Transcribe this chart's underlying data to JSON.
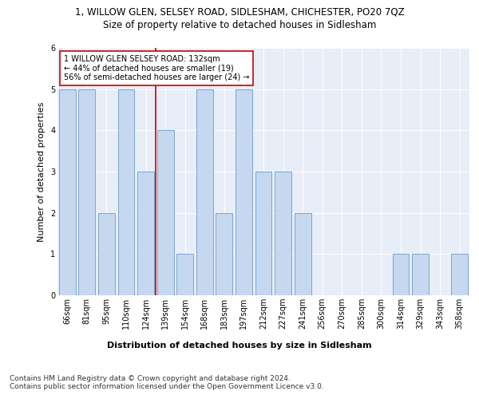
{
  "title": "1, WILLOW GLEN, SELSEY ROAD, SIDLESHAM, CHICHESTER, PO20 7QZ",
  "subtitle": "Size of property relative to detached houses in Sidlesham",
  "xlabel": "Distribution of detached houses by size in Sidlesham",
  "ylabel": "Number of detached properties",
  "categories": [
    "66sqm",
    "81sqm",
    "95sqm",
    "110sqm",
    "124sqm",
    "139sqm",
    "154sqm",
    "168sqm",
    "183sqm",
    "197sqm",
    "212sqm",
    "227sqm",
    "241sqm",
    "256sqm",
    "270sqm",
    "285sqm",
    "300sqm",
    "314sqm",
    "329sqm",
    "343sqm",
    "358sqm"
  ],
  "values": [
    5,
    5,
    2,
    5,
    3,
    4,
    1,
    5,
    2,
    5,
    3,
    3,
    2,
    0,
    0,
    0,
    0,
    1,
    1,
    0,
    1
  ],
  "bar_color": "#c5d8f0",
  "bar_edge_color": "#6a9cc9",
  "highlight_index": 4,
  "highlight_line_color": "#cc0000",
  "annotation_text": "1 WILLOW GLEN SELSEY ROAD: 132sqm\n← 44% of detached houses are smaller (19)\n56% of semi-detached houses are larger (24) →",
  "annotation_box_color": "#ffffff",
  "annotation_box_edge_color": "#cc0000",
  "ylim": [
    0,
    6
  ],
  "yticks": [
    0,
    1,
    2,
    3,
    4,
    5,
    6
  ],
  "footer": "Contains HM Land Registry data © Crown copyright and database right 2024.\nContains public sector information licensed under the Open Government Licence v3.0.",
  "bg_color": "#e8eef8",
  "title_fontsize": 8.5,
  "subtitle_fontsize": 8.5,
  "footer_fontsize": 6.5,
  "ylabel_fontsize": 8,
  "xlabel_fontsize": 8,
  "tick_fontsize": 7,
  "annotation_fontsize": 7
}
